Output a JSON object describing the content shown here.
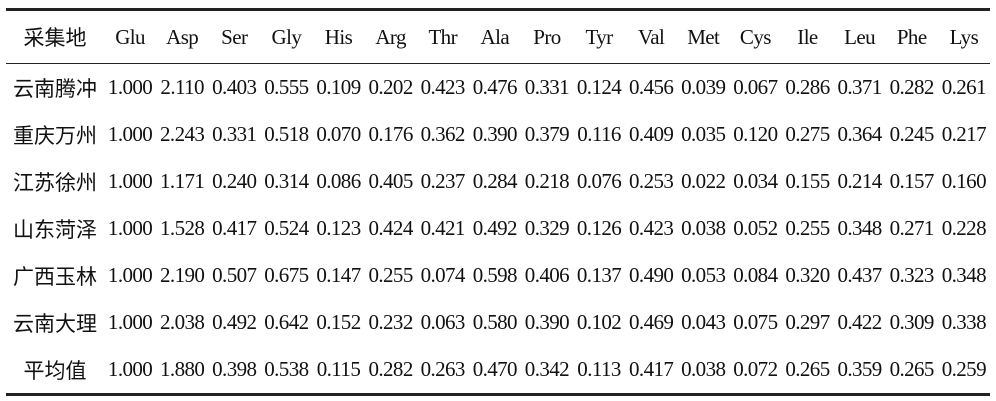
{
  "table": {
    "header": [
      "采集地",
      "Glu",
      "Asp",
      "Ser",
      "Gly",
      "His",
      "Arg",
      "Thr",
      "Ala",
      "Pro",
      "Tyr",
      "Val",
      "Met",
      "Cys",
      "Ile",
      "Leu",
      "Phe",
      "Lys"
    ],
    "rows": [
      [
        "云南腾冲",
        "1.000",
        "2.110",
        "0.403",
        "0.555",
        "0.109",
        "0.202",
        "0.423",
        "0.476",
        "0.331",
        "0.124",
        "0.456",
        "0.039",
        "0.067",
        "0.286",
        "0.371",
        "0.282",
        "0.261"
      ],
      [
        "重庆万州",
        "1.000",
        "2.243",
        "0.331",
        "0.518",
        "0.070",
        "0.176",
        "0.362",
        "0.390",
        "0.379",
        "0.116",
        "0.409",
        "0.035",
        "0.120",
        "0.275",
        "0.364",
        "0.245",
        "0.217"
      ],
      [
        "江苏徐州",
        "1.000",
        "1.171",
        "0.240",
        "0.314",
        "0.086",
        "0.405",
        "0.237",
        "0.284",
        "0.218",
        "0.076",
        "0.253",
        "0.022",
        "0.034",
        "0.155",
        "0.214",
        "0.157",
        "0.160"
      ],
      [
        "山东菏泽",
        "1.000",
        "1.528",
        "0.417",
        "0.524",
        "0.123",
        "0.424",
        "0.421",
        "0.492",
        "0.329",
        "0.126",
        "0.423",
        "0.038",
        "0.052",
        "0.255",
        "0.348",
        "0.271",
        "0.228"
      ],
      [
        "广西玉林",
        "1.000",
        "2.190",
        "0.507",
        "0.675",
        "0.147",
        "0.255",
        "0.074",
        "0.598",
        "0.406",
        "0.137",
        "0.490",
        "0.053",
        "0.084",
        "0.320",
        "0.437",
        "0.323",
        "0.348"
      ],
      [
        "云南大理",
        "1.000",
        "2.038",
        "0.492",
        "0.642",
        "0.152",
        "0.232",
        "0.063",
        "0.580",
        "0.390",
        "0.102",
        "0.469",
        "0.043",
        "0.075",
        "0.297",
        "0.422",
        "0.309",
        "0.338"
      ],
      [
        "平均值",
        "1.000",
        "1.880",
        "0.398",
        "0.538",
        "0.115",
        "0.282",
        "0.263",
        "0.470",
        "0.342",
        "0.113",
        "0.417",
        "0.038",
        "0.072",
        "0.265",
        "0.359",
        "0.265",
        "0.259"
      ]
    ]
  }
}
